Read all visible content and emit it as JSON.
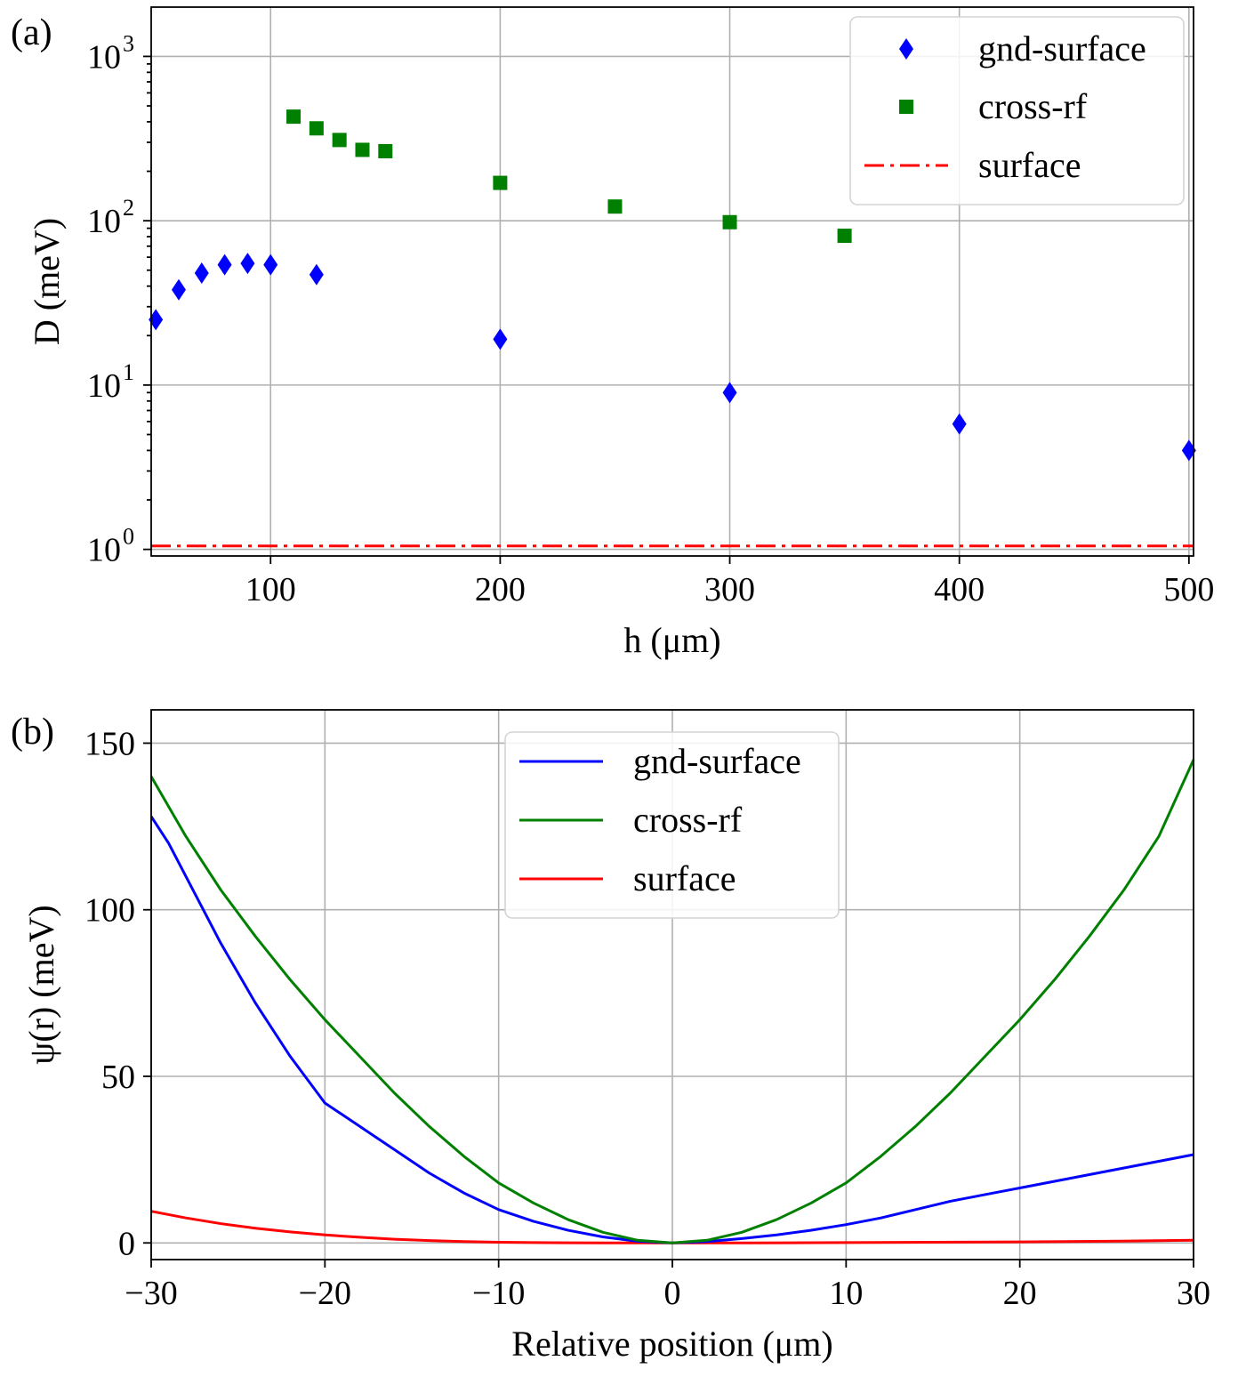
{
  "chart_data": [
    {
      "id": "a",
      "type": "scatter",
      "panel_label": "(a)",
      "title": "",
      "xlabel": "h (μm)",
      "ylabel": "D (meV)",
      "xlim": [
        48,
        502
      ],
      "ylim_log10": [
        -0.04,
        3.3
      ],
      "yscale": "log",
      "grid": true,
      "legend_position": "upper right",
      "x_ticks": [
        100,
        200,
        300,
        400,
        500
      ],
      "y_ticks": [
        {
          "exp": 0,
          "base": "10",
          "sup": "0"
        },
        {
          "exp": 1,
          "base": "10",
          "sup": "1"
        },
        {
          "exp": 2,
          "base": "10",
          "sup": "2"
        },
        {
          "exp": 3,
          "base": "10",
          "sup": "3"
        }
      ],
      "series": [
        {
          "name": "gnd-surface",
          "marker": "diamond",
          "color": "#0000ff",
          "x": [
            50,
            60,
            70,
            80,
            90,
            100,
            120,
            200,
            300,
            400,
            500
          ],
          "y": [
            25,
            38,
            48,
            54,
            55,
            54,
            47,
            19,
            9,
            5.8,
            4
          ]
        },
        {
          "name": "cross-rf",
          "marker": "square",
          "color": "#008000",
          "x": [
            110,
            120,
            130,
            140,
            150,
            200,
            250,
            300,
            350
          ],
          "y": [
            430,
            365,
            310,
            270,
            265,
            170,
            122,
            98,
            81
          ]
        },
        {
          "name": "surface",
          "marker": "dashdot-line",
          "color": "#ff0000",
          "x": [
            48,
            502
          ],
          "y": [
            1.05,
            1.05
          ]
        }
      ]
    },
    {
      "id": "b",
      "type": "line",
      "panel_label": "(b)",
      "title": "",
      "xlabel": "Relative position (μm)",
      "ylabel": "ψ(r) (meV)",
      "xlim": [
        -30,
        30
      ],
      "ylim": [
        -5,
        160
      ],
      "grid": true,
      "legend_position": "upper center",
      "x_ticks": [
        {
          "v": -30,
          "label": "−30"
        },
        {
          "v": -20,
          "label": "−20"
        },
        {
          "v": -10,
          "label": "−10"
        },
        {
          "v": 0,
          "label": "0"
        },
        {
          "v": 10,
          "label": "10"
        },
        {
          "v": 20,
          "label": "20"
        },
        {
          "v": 30,
          "label": "30"
        }
      ],
      "y_ticks": [
        0,
        50,
        100,
        150
      ],
      "series": [
        {
          "name": "gnd-surface",
          "color": "#0000ff",
          "x": [
            -30,
            -29,
            -28,
            -27,
            -26,
            -25,
            -24,
            -23,
            -22,
            -21,
            -20,
            -18,
            -16,
            -14,
            -12,
            -10,
            -8,
            -6,
            -4,
            -2,
            0,
            2,
            4,
            6,
            8,
            10,
            12,
            14,
            16,
            18,
            20,
            22,
            24,
            26,
            28,
            30
          ],
          "y": [
            128,
            120,
            110,
            100,
            90,
            81,
            72,
            64,
            56,
            49,
            42,
            35,
            28,
            21,
            15,
            10,
            6.5,
            3.8,
            1.8,
            0.5,
            0,
            0.4,
            1.3,
            2.4,
            3.8,
            5.5,
            7.5,
            10,
            12.5,
            14.5,
            16.5,
            18.5,
            20.5,
            22.5,
            24.5,
            26.5
          ]
        },
        {
          "name": "cross-rf",
          "color": "#008000",
          "x": [
            -30,
            -28,
            -26,
            -24,
            -22,
            -20,
            -18,
            -16,
            -14,
            -12,
            -10,
            -8,
            -6,
            -4,
            -2,
            0,
            2,
            4,
            6,
            8,
            10,
            12,
            14,
            16,
            18,
            20,
            22,
            24,
            26,
            28,
            30
          ],
          "y": [
            140,
            122,
            106,
            92,
            79,
            67,
            56,
            45,
            35,
            26,
            18,
            12,
            7,
            3.2,
            0.8,
            0,
            0.8,
            3.2,
            7,
            12,
            18,
            26,
            35,
            45,
            56,
            67,
            79,
            92,
            106,
            122,
            145
          ]
        },
        {
          "name": "surface",
          "color": "#ff0000",
          "x": [
            -30,
            -28,
            -26,
            -24,
            -22,
            -20,
            -18,
            -16,
            -14,
            -12,
            -10,
            -8,
            -6,
            -4,
            -2,
            0,
            5,
            10,
            15,
            20,
            25,
            30
          ],
          "y": [
            9.5,
            7.5,
            5.8,
            4.4,
            3.3,
            2.4,
            1.7,
            1.1,
            0.7,
            0.4,
            0.2,
            0.1,
            0.05,
            0.02,
            0,
            0,
            0,
            0.1,
            0.2,
            0.3,
            0.5,
            0.8
          ]
        }
      ]
    }
  ]
}
